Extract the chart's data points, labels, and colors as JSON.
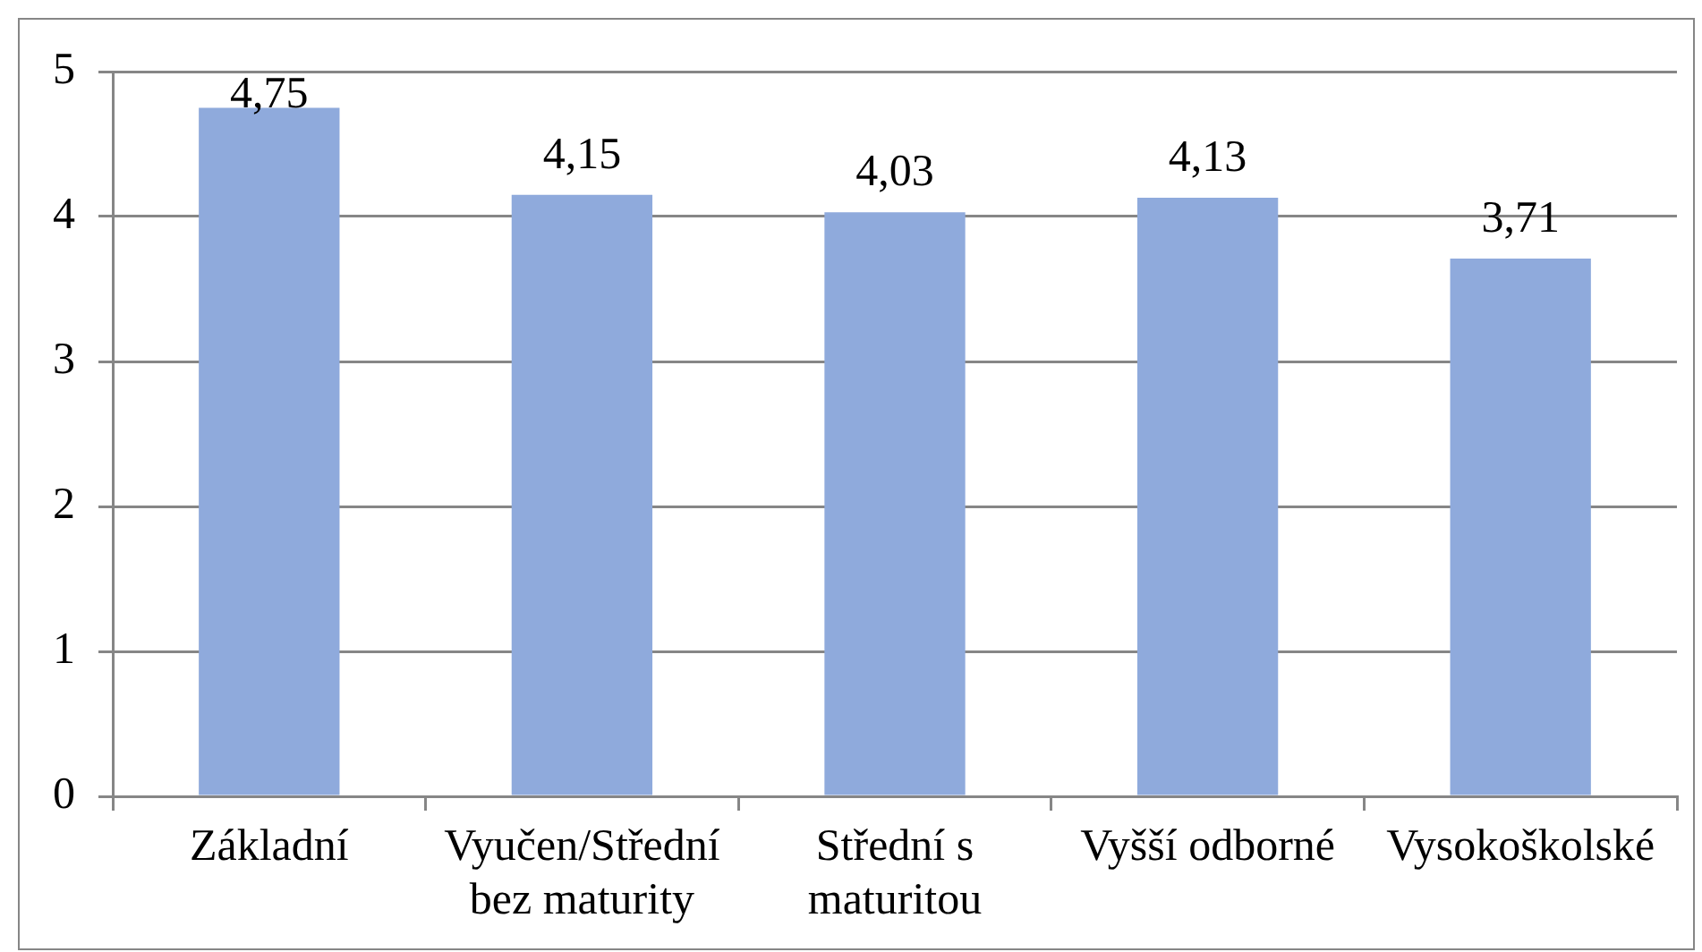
{
  "chart_data": {
    "type": "bar",
    "categories": [
      "Základní",
      "Vyučen/Střední bez maturity",
      "Střední s maturitou",
      "Vyšší odborné",
      "Vysokoškolské"
    ],
    "values": [
      4.75,
      4.15,
      4.03,
      4.13,
      3.71
    ],
    "value_labels": [
      "4,75",
      "4,15",
      "4,03",
      "4,13",
      "3,71"
    ],
    "color": "#8faadc",
    "ylim": [
      0,
      5
    ],
    "yticks": [
      0,
      1,
      2,
      3,
      4,
      5
    ],
    "grid": "y"
  }
}
